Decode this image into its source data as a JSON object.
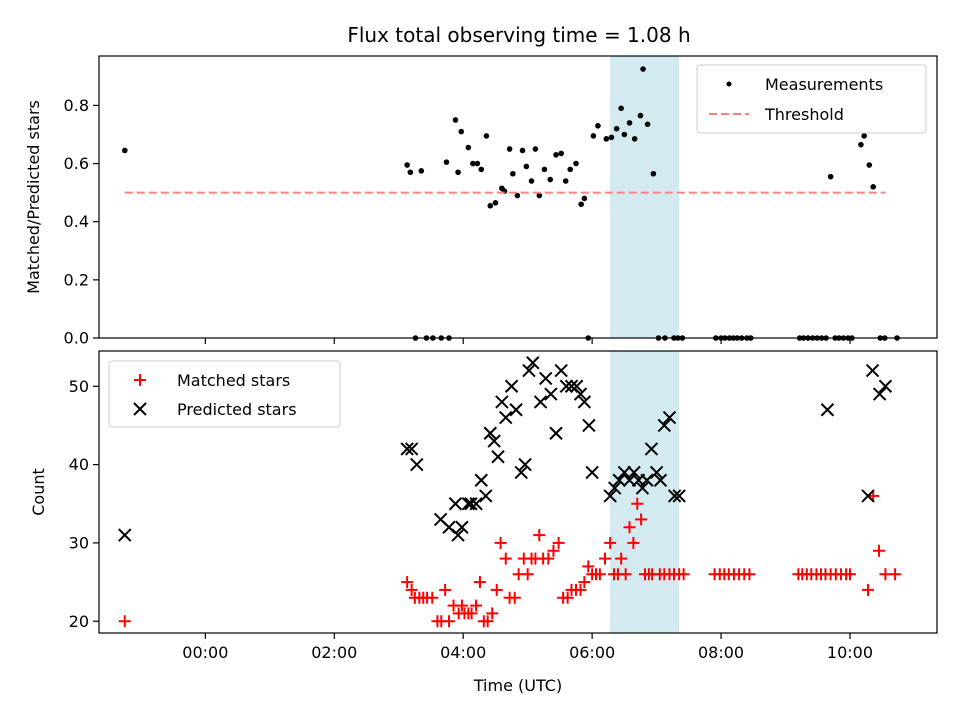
{
  "figure": {
    "title": "Flux total observing time = 1.08 h"
  },
  "chart_data": [
    {
      "type": "scatter",
      "ylabel": "Matched/Predicted stars",
      "xlim": [
        -1.65,
        11.35
      ],
      "ylim": [
        0,
        0.97
      ],
      "yticks": [
        0.0,
        0.2,
        0.4,
        0.6,
        0.8
      ],
      "ytick_labels": [
        "0.0",
        "0.2",
        "0.4",
        "0.6",
        "0.8"
      ],
      "shaded_region": {
        "x": [
          6.28,
          7.35
        ],
        "color": "#d3eaf0"
      },
      "legend_position": "upper-right",
      "series": [
        {
          "name": "Measurements",
          "color": "#000000",
          "marker": "dot",
          "x": [
            -1.25,
            3.13,
            3.18,
            3.26,
            3.35,
            3.43,
            3.53,
            3.66,
            3.74,
            3.78,
            3.88,
            3.92,
            3.97,
            4.08,
            4.15,
            4.22,
            4.28,
            4.36,
            4.42,
            4.5,
            4.6,
            4.64,
            4.72,
            4.77,
            4.84,
            4.92,
            4.98,
            5.06,
            5.12,
            5.18,
            5.26,
            5.35,
            5.44,
            5.52,
            5.59,
            5.66,
            5.75,
            5.83,
            5.88,
            5.94,
            6.02,
            6.09,
            6.22,
            6.3,
            6.38,
            6.45,
            6.5,
            6.58,
            6.66,
            6.75,
            6.79,
            6.86,
            6.95,
            7.03,
            7.13,
            7.27,
            7.33,
            7.4,
            7.92,
            8.0,
            8.06,
            8.13,
            8.19,
            8.25,
            8.32,
            8.4,
            8.46,
            9.22,
            9.28,
            9.35,
            9.42,
            9.49,
            9.56,
            9.63,
            9.7,
            9.77,
            9.83,
            9.9,
            9.97,
            10.03,
            10.17,
            10.22,
            10.3,
            10.36,
            10.47,
            10.54,
            10.73
          ],
          "y": [
            0.645,
            0.595,
            0.57,
            0.0,
            0.575,
            0.0,
            0.0,
            0.0,
            0.605,
            0.0,
            0.75,
            0.57,
            0.71,
            0.655,
            0.6,
            0.6,
            0.58,
            0.695,
            0.455,
            0.465,
            0.515,
            0.505,
            0.65,
            0.565,
            0.49,
            0.645,
            0.59,
            0.54,
            0.65,
            0.49,
            0.58,
            0.545,
            0.63,
            0.635,
            0.54,
            0.58,
            0.6,
            0.46,
            0.48,
            0.0,
            0.695,
            0.73,
            0.685,
            0.69,
            0.72,
            0.79,
            0.7,
            0.74,
            0.685,
            0.765,
            0.925,
            0.735,
            0.565,
            0.0,
            0.0,
            0.0,
            0.0,
            0.0,
            0.0,
            0.0,
            0.0,
            0.0,
            0.0,
            0.0,
            0.0,
            0.0,
            0.0,
            0.0,
            0.0,
            0.0,
            0.0,
            0.0,
            0.0,
            0.0,
            0.555,
            0.0,
            0.0,
            0.0,
            0.0,
            0.0,
            0.665,
            0.695,
            0.595,
            0.52,
            0.0,
            0.0,
            0.0
          ]
        },
        {
          "name": "Threshold",
          "color": "#ff7f7f",
          "style": "dashed-line",
          "x": [
            -1.25,
            10.55
          ],
          "y": [
            0.5,
            0.5
          ]
        }
      ]
    },
    {
      "type": "scatter",
      "xlabel": "Time (UTC)",
      "ylabel": "Count",
      "xlim": [
        -1.65,
        11.35
      ],
      "ylim": [
        18.5,
        54.5
      ],
      "xticks": [
        0,
        2,
        4,
        6,
        8,
        10
      ],
      "xtick_labels": [
        "00:00",
        "02:00",
        "04:00",
        "06:00",
        "08:00",
        "10:00"
      ],
      "yticks": [
        20,
        30,
        40,
        50
      ],
      "ytick_labels": [
        "20",
        "30",
        "40",
        "50"
      ],
      "shaded_region": {
        "x": [
          6.28,
          7.35
        ],
        "color": "#d3eaf0"
      },
      "legend_position": "upper-left",
      "series": [
        {
          "name": "Matched stars",
          "color": "#ff0000",
          "marker": "plus",
          "x": [
            -1.25,
            3.13,
            3.2,
            3.25,
            3.32,
            3.38,
            3.44,
            3.52,
            3.6,
            3.66,
            3.72,
            3.78,
            3.85,
            3.93,
            3.98,
            4.02,
            4.08,
            4.13,
            4.2,
            4.26,
            4.32,
            4.38,
            4.45,
            4.52,
            4.58,
            4.66,
            4.72,
            4.8,
            4.86,
            4.94,
            5.0,
            5.06,
            5.12,
            5.18,
            5.24,
            5.32,
            5.4,
            5.48,
            5.55,
            5.62,
            5.68,
            5.75,
            5.82,
            5.88,
            5.94,
            6.0,
            6.06,
            6.12,
            6.2,
            6.28,
            6.34,
            6.4,
            6.45,
            6.52,
            6.58,
            6.64,
            6.7,
            6.76,
            6.82,
            6.88,
            6.93,
            7.05,
            7.12,
            7.2,
            7.27,
            7.35,
            7.42,
            7.9,
            7.98,
            8.05,
            8.12,
            8.2,
            8.28,
            8.36,
            8.44,
            9.2,
            9.26,
            9.33,
            9.4,
            9.48,
            9.55,
            9.62,
            9.7,
            9.78,
            9.86,
            9.94,
            10.0,
            10.28,
            10.36,
            10.45,
            10.55,
            10.7
          ],
          "y": [
            20,
            25,
            24,
            23,
            23,
            23,
            23,
            23,
            20,
            20,
            24,
            20,
            22,
            21,
            22,
            21,
            21,
            21,
            22,
            25,
            20,
            20,
            21,
            24,
            30,
            28,
            23,
            23,
            26,
            28,
            26,
            28,
            28,
            31,
            28,
            28,
            29,
            30,
            23,
            23,
            24,
            24,
            24,
            25,
            27,
            26,
            26,
            26,
            28,
            30,
            26,
            26,
            28,
            26,
            32,
            30,
            35,
            33,
            26,
            26,
            26,
            26,
            26,
            26,
            26,
            26,
            26,
            26,
            26,
            26,
            26,
            26,
            26,
            26,
            26,
            26,
            26,
            26,
            26,
            26,
            26,
            26,
            26,
            26,
            26,
            26,
            26,
            24,
            36,
            29,
            26,
            26
          ],
          "x_note": "read from markers"
        },
        {
          "name": "Predicted stars",
          "color": "#000000",
          "marker": "x",
          "x": [
            -1.25,
            3.13,
            3.2,
            3.28,
            3.65,
            3.78,
            3.88,
            3.92,
            3.98,
            4.08,
            4.12,
            4.2,
            4.28,
            4.35,
            4.42,
            4.48,
            4.54,
            4.6,
            4.66,
            4.75,
            4.82,
            4.9,
            4.96,
            5.02,
            5.08,
            5.2,
            5.28,
            5.36,
            5.44,
            5.52,
            5.6,
            5.68,
            5.76,
            5.82,
            5.88,
            5.95,
            6.0,
            6.28,
            6.35,
            6.42,
            6.5,
            6.58,
            6.65,
            6.72,
            6.78,
            6.85,
            6.92,
            7.0,
            7.06,
            7.12,
            7.2,
            7.28,
            7.35,
            9.65,
            10.28,
            10.35,
            10.46,
            10.55
          ],
          "y": [
            31,
            42,
            42,
            40,
            33,
            32,
            35,
            31,
            32,
            35,
            35,
            35,
            38,
            36,
            44,
            43,
            41,
            48,
            46,
            50,
            47,
            39,
            40,
            52,
            53,
            48,
            51,
            49,
            44,
            52,
            50,
            50,
            50,
            49,
            48,
            45,
            39,
            36,
            37,
            38,
            39,
            38,
            39,
            38,
            37,
            38,
            42,
            39,
            38,
            45,
            46,
            36,
            36,
            47,
            36,
            52,
            49,
            50
          ]
        }
      ]
    }
  ]
}
